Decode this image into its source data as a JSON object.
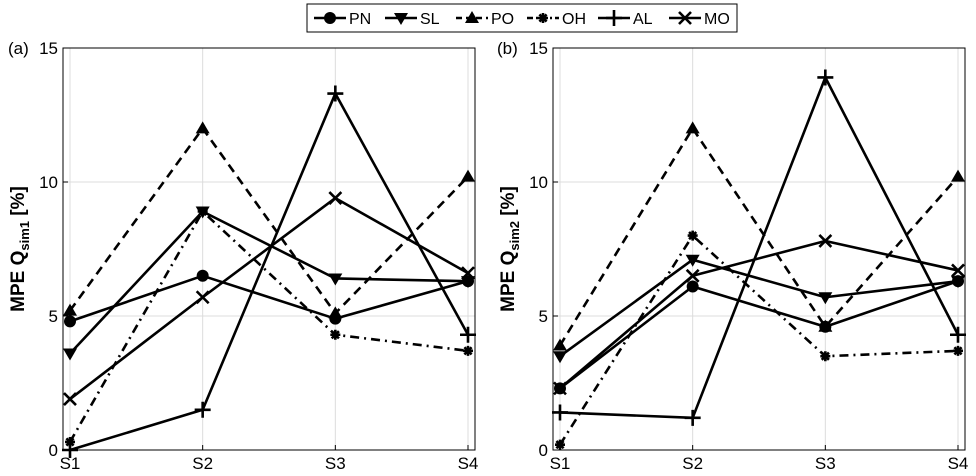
{
  "chart_data": [
    {
      "type": "line",
      "panel_label": "(a)",
      "ylabel_main": "MPE Q",
      "ylabel_sub": "sim1",
      "ylabel_unit": " [%]",
      "categories": [
        "S1",
        "S2",
        "S3",
        "S4"
      ],
      "ylim": [
        0,
        15
      ],
      "yticks": [
        "0",
        "5",
        "10",
        "15"
      ],
      "grid": true,
      "series": [
        {
          "name": "PN",
          "values": [
            4.8,
            6.5,
            4.9,
            6.3
          ]
        },
        {
          "name": "SL",
          "values": [
            3.6,
            8.9,
            6.4,
            6.3
          ]
        },
        {
          "name": "PO",
          "values": [
            5.2,
            12.0,
            5.1,
            10.2
          ]
        },
        {
          "name": "OH",
          "values": [
            0.3,
            8.9,
            4.3,
            3.7
          ]
        },
        {
          "name": "AL",
          "values": [
            0.0,
            1.5,
            13.3,
            4.3
          ]
        },
        {
          "name": "MO",
          "values": [
            1.9,
            5.7,
            9.4,
            6.6
          ]
        }
      ]
    },
    {
      "type": "line",
      "panel_label": "(b)",
      "ylabel_main": "MPE Q",
      "ylabel_sub": "sim2",
      "ylabel_unit": " [%]",
      "categories": [
        "S1",
        "S2",
        "S3",
        "S4"
      ],
      "ylim": [
        0,
        15
      ],
      "yticks": [
        "0",
        "5",
        "10",
        "15"
      ],
      "grid": true,
      "series": [
        {
          "name": "PN",
          "values": [
            2.3,
            6.1,
            4.6,
            6.3
          ]
        },
        {
          "name": "SL",
          "values": [
            3.5,
            7.1,
            5.7,
            6.3
          ]
        },
        {
          "name": "PO",
          "values": [
            3.9,
            12.0,
            4.6,
            10.2
          ]
        },
        {
          "name": "OH",
          "values": [
            0.2,
            8.0,
            3.5,
            3.7
          ]
        },
        {
          "name": "AL",
          "values": [
            1.4,
            1.2,
            13.9,
            4.3
          ]
        },
        {
          "name": "MO",
          "values": [
            2.3,
            6.5,
            7.8,
            6.7
          ]
        }
      ]
    }
  ],
  "legend": {
    "placement": "top-center",
    "entries": [
      {
        "name": "PN",
        "marker": "circle",
        "dash": "solid"
      },
      {
        "name": "SL",
        "marker": "triangle-down",
        "dash": "solid"
      },
      {
        "name": "PO",
        "marker": "triangle-up",
        "dash": "dashed"
      },
      {
        "name": "OH",
        "marker": "asterisk",
        "dash": "dashdot"
      },
      {
        "name": "AL",
        "marker": "plus",
        "dash": "solid"
      },
      {
        "name": "MO",
        "marker": "cross",
        "dash": "solid"
      }
    ]
  }
}
